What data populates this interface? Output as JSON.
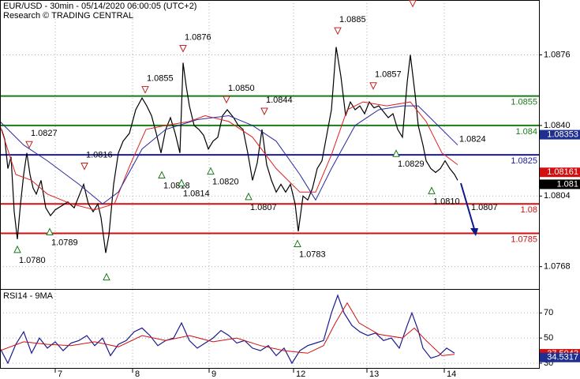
{
  "chart_data": [
    {
      "type": "line",
      "title": "EUR/USD - 30min - 05/14/2020 06:00:05 (UTC+2)",
      "subtitle": "Research © TRADING CENTRAL",
      "xlim": [
        0,
        170.75
      ],
      "ylim": [
        1.0757,
        1.0904
      ],
      "yticks": [
        1.0876,
        {
          "value": 1.084,
          "label": "1.0840"
        },
        1.0804,
        1.0768
      ],
      "grid": true,
      "series": [
        {
          "color": "#000000",
          "x": [
            0.5,
            1.5,
            2.5,
            3.5,
            4.5,
            5.5,
            6.5,
            7.5,
            8.5,
            9.5,
            10.5,
            11.5,
            13,
            14.5,
            16,
            17.5,
            19.5,
            21.5,
            23.5,
            25,
            26.5,
            28,
            29.5,
            31,
            32,
            33.5,
            34.5,
            36,
            37.5,
            39,
            41,
            43,
            45,
            46.5,
            48,
            49.5,
            51,
            52.5,
            54,
            55.5,
            57,
            58,
            59,
            60,
            61.5,
            63,
            64.5,
            66,
            67.5,
            69,
            70.5,
            72,
            74,
            75.5,
            77,
            78.5,
            80,
            81.5,
            83,
            84.5,
            86,
            87.5,
            89,
            90.5,
            92,
            93.5,
            94.5,
            96,
            97.5,
            99,
            100.5,
            102,
            103.5,
            105,
            106.5,
            108,
            109.5,
            111,
            112.5,
            114,
            115.5,
            117,
            118.5,
            120,
            121.5,
            123,
            124.5,
            126,
            127.5,
            129,
            130,
            131.5,
            132.5,
            134,
            135,
            136.5,
            138,
            139.5,
            141,
            142.5,
            144,
            145
          ],
          "values": [
            1.0838,
            1.0833,
            1.0818,
            1.0824,
            1.0796,
            1.0782,
            1.08,
            1.0815,
            1.0826,
            1.0815,
            1.0808,
            1.0805,
            1.0812,
            1.0798,
            1.0794,
            1.0797,
            1.0799,
            1.0801,
            1.0798,
            1.0804,
            1.081,
            1.08,
            1.0796,
            1.08,
            1.0793,
            1.0775,
            1.0784,
            1.081,
            1.0826,
            1.0832,
            1.0836,
            1.0848,
            1.0854,
            1.085,
            1.0845,
            1.0836,
            1.0826,
            1.0838,
            1.0844,
            1.0836,
            1.0826,
            1.0872,
            1.086,
            1.085,
            1.084,
            1.0838,
            1.0835,
            1.0828,
            1.0832,
            1.0834,
            1.0845,
            1.0848,
            1.0844,
            1.084,
            1.0838,
            1.0826,
            1.0812,
            1.0821,
            1.0838,
            1.082,
            1.0812,
            1.0806,
            1.081,
            1.0806,
            1.081,
            1.08,
            1.0786,
            1.0804,
            1.0802,
            1.0808,
            1.0818,
            1.0822,
            1.0835,
            1.0848,
            1.088,
            1.0865,
            1.0845,
            1.0852,
            1.0848,
            1.085,
            1.0846,
            1.0852,
            1.0849,
            1.085,
            1.0847,
            1.0844,
            1.0846,
            1.0838,
            1.0834,
            1.0862,
            1.0876,
            1.0856,
            1.084,
            1.083,
            1.0822,
            1.0818,
            1.0816,
            1.0818,
            1.0822,
            1.0818,
            1.0815,
            1.0812
          ]
        },
        {
          "color": "#e02020",
          "x": [
            0,
            5,
            10,
            15,
            22.5,
            30,
            36.25,
            41.25,
            46.25,
            52.5,
            60,
            65,
            72.5,
            80,
            87.5,
            95,
            100,
            105,
            110,
            115,
            122.5,
            130,
            135,
            140,
            145
          ],
          "values": [
            1.084,
            1.0815,
            1.0812,
            1.0805,
            1.08,
            1.0797,
            1.08,
            1.082,
            1.0838,
            1.084,
            1.0842,
            1.0845,
            1.0842,
            1.0834,
            1.0818,
            1.0806,
            1.0806,
            1.0825,
            1.0848,
            1.0852,
            1.085,
            1.0852,
            1.0842,
            1.0826,
            1.082
          ]
        },
        {
          "color": "#2a2aa0",
          "x": [
            0,
            7.5,
            15,
            25,
            32.5,
            37.5,
            45,
            52.5,
            62.5,
            72.5,
            80,
            87.5,
            95,
            100,
            105,
            112.5,
            120,
            127.5,
            132.5,
            140,
            145
          ],
          "values": [
            1.0842,
            1.083,
            1.0822,
            1.081,
            1.08,
            1.0806,
            1.0828,
            1.0838,
            1.0843,
            1.0845,
            1.084,
            1.0832,
            1.0815,
            1.0802,
            1.0818,
            1.084,
            1.0848,
            1.085,
            1.085,
            1.0838,
            1.083
          ]
        }
      ],
      "levels": [
        {
          "value": 1.0855,
          "color": "#1a7a1a"
        },
        {
          "value": 1.084,
          "color": "#1a7a1a"
        },
        {
          "value": 1.0825,
          "color": "#1a1aa0"
        },
        {
          "value": 1.08,
          "color": "#d01010"
        },
        {
          "value": 1.0785,
          "color": "#d01010"
        }
      ],
      "annotations": [
        {
          "x": 107,
          "y": 1.0885,
          "label": "1.0885",
          "kind": "high"
        },
        {
          "x": 130.75,
          "y": 1.0899,
          "kind": "high"
        },
        {
          "x": 58,
          "y": 1.0876,
          "label": "1.0876",
          "kind": "high"
        },
        {
          "x": 46,
          "y": 1.0855,
          "label": "1.0855",
          "kind": "high"
        },
        {
          "x": 71.75,
          "y": 1.085,
          "label": "1.0850",
          "kind": "high"
        },
        {
          "x": 83.75,
          "y": 1.0844,
          "label": "1.0844",
          "kind": "high"
        },
        {
          "x": 118.25,
          "y": 1.0857,
          "label": "1.0857",
          "kind": "high"
        },
        {
          "x": 9.25,
          "y": 1.0827,
          "label": "1.0827",
          "kind": "high"
        },
        {
          "x": 26.75,
          "y": 1.0816,
          "label": "1.0816",
          "kind": "high"
        },
        {
          "x": 5.5,
          "y": 1.078,
          "label": "1.0780",
          "kind": "low"
        },
        {
          "x": 15.75,
          "y": 1.0789,
          "label": "1.0789",
          "kind": "low"
        },
        {
          "x": 33.75,
          "y": 1.0766,
          "kind": "low"
        },
        {
          "x": 51.25,
          "y": 1.0818,
          "label": "1.0818",
          "kind": "low"
        },
        {
          "x": 57.5,
          "y": 1.0814,
          "label": "1.0814",
          "kind": "low"
        },
        {
          "x": 66.75,
          "y": 1.082,
          "label": "1.0820",
          "kind": "low"
        },
        {
          "x": 78.75,
          "y": 1.0807,
          "label": "1.0807",
          "kind": "low"
        },
        {
          "x": 94.25,
          "y": 1.0783,
          "label": "1.0783",
          "kind": "low"
        },
        {
          "x": 125.5,
          "y": 1.0829,
          "label": "1.0829",
          "kind": "low"
        },
        {
          "x": 136.75,
          "y": 1.081,
          "label": "1.0810",
          "kind": "low"
        },
        {
          "x": 145,
          "y": 1.0824,
          "label": "1.0824",
          "kind": "high",
          "marker": false
        },
        {
          "x": 148.75,
          "y": 1.0807,
          "label": "1.0807",
          "kind": "low",
          "marker": false
        }
      ],
      "price_tags": [
        {
          "value": 1.08353,
          "color": "#1f2f8f"
        },
        {
          "value": 1.08161,
          "color": "#d01010"
        },
        {
          "value": 1.081,
          "color": "#000000"
        }
      ]
    },
    {
      "type": "line",
      "title": "RSI14 - 9MA",
      "xlim": [
        0,
        170.75
      ],
      "xticks": [
        {
          "value": 17.5,
          "label": "7"
        },
        {
          "value": 42,
          "label": "8"
        },
        {
          "value": 66.25,
          "label": "9"
        },
        {
          "value": 93,
          "label": "12"
        },
        {
          "value": 116.25,
          "label": "13"
        },
        {
          "value": 140.75,
          "label": "14"
        }
      ],
      "ylim": [
        25.6,
        88.4
      ],
      "yticks": [
        70,
        50,
        30
      ],
      "grid": true,
      "series": [
        {
          "color": "#1a1a90",
          "x": [
            0,
            2.5,
            5,
            7.5,
            10,
            12.5,
            15,
            17.5,
            20,
            22.5,
            25,
            27.5,
            30,
            32.5,
            35,
            37.5,
            40,
            42.5,
            45,
            47.5,
            50,
            52.5,
            55,
            57.5,
            60,
            62.5,
            65,
            67.5,
            70,
            72.5,
            75,
            77.5,
            80,
            82.5,
            85,
            87.5,
            90,
            92.5,
            95,
            97.5,
            100,
            102.5,
            105,
            107,
            109,
            111.5,
            114,
            116.5,
            119,
            121.5,
            124,
            126.5,
            129,
            130.5,
            132.5,
            134,
            136.5,
            139,
            141.5,
            144
          ],
          "values": [
            42,
            30,
            45,
            55,
            38,
            50,
            42,
            47,
            40,
            46,
            48,
            52,
            44,
            50,
            36,
            45,
            48,
            55,
            58,
            52,
            44,
            48,
            50,
            62,
            48,
            42,
            46,
            50,
            56,
            52,
            46,
            48,
            42,
            40,
            44,
            36,
            42,
            30,
            40,
            44,
            46,
            48,
            70,
            84,
            70,
            60,
            55,
            52,
            54,
            48,
            50,
            42,
            60,
            70,
            56,
            42,
            34,
            36,
            42,
            38
          ]
        },
        {
          "color": "#d01010",
          "x": [
            0,
            7.5,
            15,
            22.5,
            30,
            37.5,
            45,
            52.5,
            60,
            67.5,
            75,
            82.5,
            90,
            97.5,
            102.5,
            106.25,
            110,
            113.75,
            120,
            127.5,
            131.25,
            135,
            140,
            144
          ],
          "values": [
            40,
            47,
            45,
            44,
            47,
            43,
            52,
            48,
            52,
            47,
            50,
            44,
            40,
            38,
            44,
            62,
            78,
            62,
            53,
            50,
            58,
            48,
            36,
            37
          ]
        }
      ],
      "value_tags": [
        {
          "value": 37.5042,
          "color": "#d01010"
        },
        {
          "value": 34.5317,
          "color": "#1f2f8f"
        }
      ]
    }
  ]
}
